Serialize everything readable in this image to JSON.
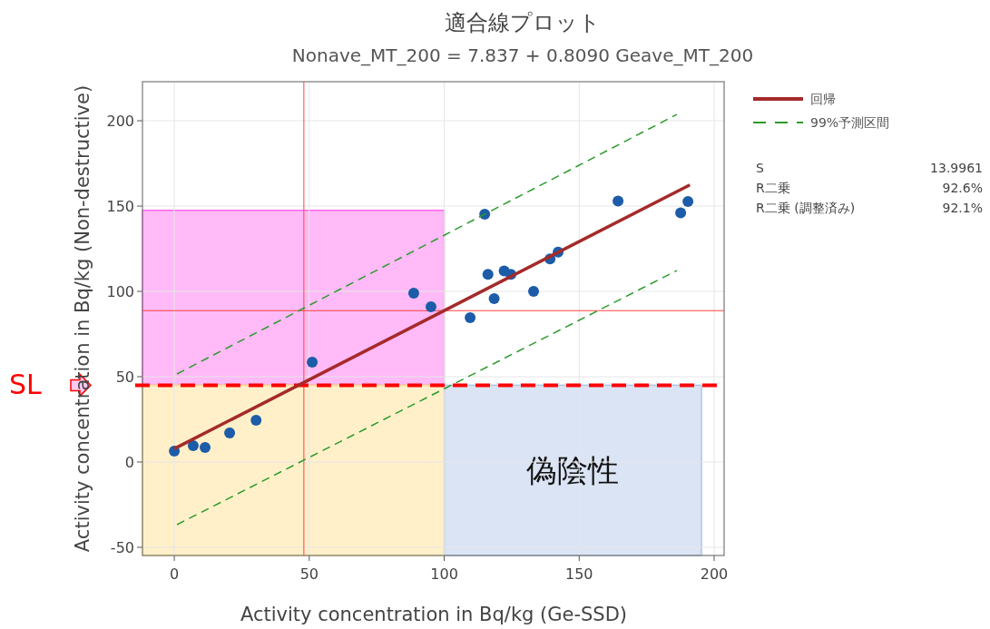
{
  "chart_data": {
    "type": "scatter",
    "title": "適合線プロット",
    "subtitle": "Nonave_MT_200 = 7.837 + 0.8090 Geave_MT_200",
    "xlabel": "Activity concentration in Bq/kg (Ge-SSD)",
    "ylabel": "Activity concentration in Bq/kg (Non-destructive)",
    "xlim": [
      -11.8,
      203.7
    ],
    "ylim": [
      -54.8,
      222.9
    ],
    "xticks": [
      0,
      50,
      100,
      150,
      200
    ],
    "yticks": [
      {
        "value": -50,
        "label": "-50"
      },
      0,
      50,
      100,
      150,
      200
    ],
    "grid": true,
    "legend": "top right",
    "series": [
      {
        "marker": "circle",
        "color": "#1c5ca8",
        "x": [
          0,
          7,
          11.4,
          20.5,
          30.3,
          51.1,
          88.7,
          95.1,
          109.6,
          115,
          116.2,
          118.5,
          122.2,
          124.7,
          133.1,
          139.2,
          142.2,
          164.4,
          187.6,
          190.3
        ],
        "values": [
          6.4,
          9.6,
          8.5,
          17,
          24.5,
          58.5,
          98.9,
          91,
          84.6,
          145.2,
          110,
          95.7,
          112,
          110,
          100,
          119,
          123,
          153,
          146,
          152.7
        ]
      },
      {
        "type": "line",
        "name": "回帰",
        "color": "#a52a2a",
        "line_style": "solid",
        "x": [
          0,
          191
        ],
        "values": [
          7.8,
          162.4
        ]
      },
      {
        "type": "line",
        "name": "99%予測区間",
        "color": "#2a9a2a",
        "line_style": "dashed",
        "x": [
          1,
          186.2
        ],
        "values": [
          51.6,
          203.7
        ]
      },
      {
        "type": "line",
        "color": "#2a9a2a",
        "line_style": "dashed",
        "x": [
          1,
          186.2
        ],
        "values": [
          -36.7,
          112.2
        ]
      }
    ],
    "ref_lines": [
      {
        "axis": "x",
        "value": 48,
        "color": "#ff4040",
        "line_style": "solid"
      },
      {
        "axis": "y",
        "value": 88.7,
        "color": "#ff4040",
        "line_style": "solid"
      },
      {
        "axis": "y",
        "value": 45,
        "label": "SL",
        "color": "#ff0000",
        "line_style": "dashed"
      }
    ],
    "bands": [
      {
        "axis": "y",
        "from": 45,
        "to": 147.5,
        "color": "#ff66ee"
      },
      {
        "axis": "x",
        "from": -11.8,
        "to": 100,
        "color": "#ffdd88"
      },
      {
        "axis": "x",
        "from": 100,
        "to": 195.3,
        "label": "偽陰性",
        "color": "#b0c4e6"
      }
    ],
    "annotations": [
      "S",
      "13.9961",
      "R二乗",
      "92.6%",
      "R二乗 (調整済み)",
      "92.1%"
    ]
  }
}
